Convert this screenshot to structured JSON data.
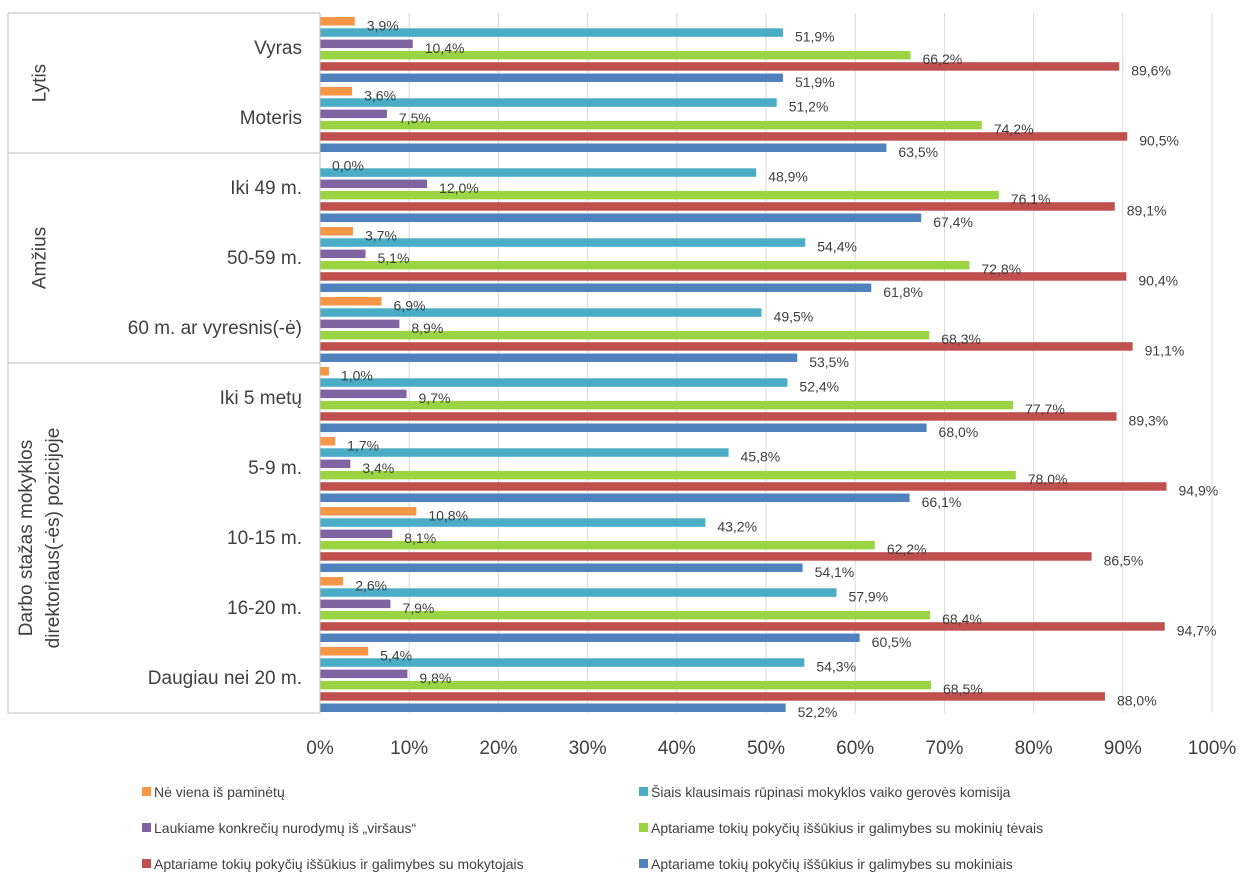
{
  "chart_data": {
    "type": "bar",
    "orientation": "horizontal",
    "xlim": [
      0,
      100
    ],
    "x_ticks": [
      "0%",
      "10%",
      "20%",
      "30%",
      "40%",
      "50%",
      "60%",
      "70%",
      "80%",
      "90%",
      "100%"
    ],
    "grid": "vertical",
    "legend_position": "bottom",
    "group_labels": [
      "Lytis",
      "Amžius",
      "Darbo stažas mokyklos direktoriaus(-ės) pozicijoje"
    ],
    "group_label_lines": [
      [
        "Lytis"
      ],
      [
        "Amžius"
      ],
      [
        "Darbo stažas mokyklos",
        "direktoriaus(-ės) pozicijoje"
      ]
    ],
    "groups": [
      {
        "label": "Lytis",
        "categories": [
          "Vyras",
          "Moteris"
        ]
      },
      {
        "label": "Amžius",
        "categories": [
          "Iki 49 m.",
          "50-59 m.",
          "60 m. ar vyresnis(-ė)"
        ]
      },
      {
        "label": "Darbo stažas mokyklos direktoriaus(-ės) pozicijoje",
        "categories": [
          "Iki 5 metų",
          "5-9 m.",
          "10-15 m.",
          "16-20 m.",
          "Daugiau nei 20 m."
        ]
      }
    ],
    "categories": [
      "Vyras",
      "Moteris",
      "Iki 49 m.",
      "50-59 m.",
      "60 m. ar vyresnis(-ė)",
      "Iki 5 metų",
      "5-9 m.",
      "10-15 m.",
      "16-20 m.",
      "Daugiau nei 20 m."
    ],
    "series": [
      {
        "name": "Nė viena iš paminėtų",
        "color": "#f79646",
        "values": [
          3.9,
          3.6,
          0.0,
          3.7,
          6.9,
          1.0,
          1.7,
          10.8,
          2.6,
          5.4
        ],
        "labels": [
          "3,9%",
          "3,6%",
          "0,0%",
          "3,7%",
          "6,9%",
          "1,0%",
          "1,7%",
          "10,8%",
          "2,6%",
          "5,4%"
        ]
      },
      {
        "name": "Šiais klausimais rūpinasi mokyklos vaiko gerovės komisija",
        "color": "#4bacc6",
        "values": [
          51.9,
          51.2,
          48.9,
          54.4,
          49.5,
          52.4,
          45.8,
          43.2,
          57.9,
          54.3
        ],
        "labels": [
          "51,9%",
          "51,2%",
          "48,9%",
          "54,4%",
          "49,5%",
          "52,4%",
          "45,8%",
          "43,2%",
          "57,9%",
          "54,3%"
        ]
      },
      {
        "name": "Laukiame konkrečių nurodymų iš „viršaus“",
        "color": "#8064a2",
        "values": [
          10.4,
          7.5,
          12.0,
          5.1,
          8.9,
          9.7,
          3.4,
          8.1,
          7.9,
          9.8
        ],
        "labels": [
          "10,4%",
          "7,5%",
          "12,0%",
          "5,1%",
          "8,9%",
          "9,7%",
          "3,4%",
          "8,1%",
          "7,9%",
          "9,8%"
        ]
      },
      {
        "name": "Aptariame tokių pokyčių iššūkius ir galimybes su mokinių tėvais",
        "color": "#9bd443",
        "values": [
          66.2,
          74.2,
          76.1,
          72.8,
          68.3,
          77.7,
          78.0,
          62.2,
          68.4,
          68.5
        ],
        "labels": [
          "66,2%",
          "74,2%",
          "76,1%",
          "72,8%",
          "68,3%",
          "77,7%",
          "78,0%",
          "62,2%",
          "68,4%",
          "68,5%"
        ]
      },
      {
        "name": "Aptariame tokių pokyčių iššūkius ir galimybes su mokytojais",
        "color": "#c0504d",
        "values": [
          89.6,
          90.5,
          89.1,
          90.4,
          91.1,
          89.3,
          94.9,
          86.5,
          94.7,
          88.0
        ],
        "labels": [
          "89,6%",
          "90,5%",
          "89,1%",
          "90,4%",
          "91,1%",
          "89,3%",
          "94,9%",
          "86,5%",
          "94,7%",
          "88,0%"
        ]
      },
      {
        "name": "Aptariame tokių pokyčių iššūkius ir galimybes su mokiniais",
        "color": "#4f81bd",
        "values": [
          51.9,
          63.5,
          67.4,
          61.8,
          53.5,
          68.0,
          66.1,
          54.1,
          60.5,
          52.2
        ],
        "labels": [
          "51,9%",
          "63,5%",
          "67,4%",
          "61,8%",
          "53,5%",
          "68,0%",
          "66,1%",
          "54,1%",
          "60,5%",
          "52,2%"
        ]
      }
    ],
    "legend_order": [
      0,
      1,
      2,
      3,
      4,
      5
    ]
  }
}
